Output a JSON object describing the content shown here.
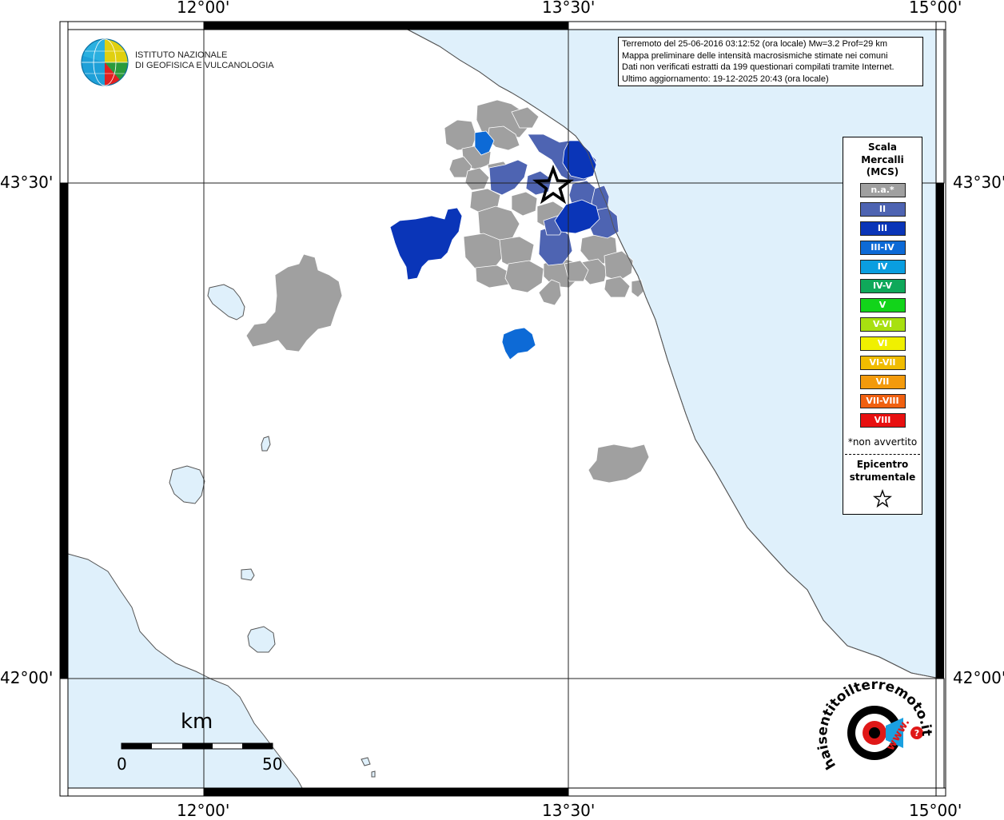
{
  "map": {
    "coords": {
      "top": [
        "12°00'",
        "13°30'",
        "15°00'"
      ],
      "bottom": [
        "12°00'",
        "13°30'",
        "15°00'"
      ],
      "left": [
        "43°30'",
        "42°00'"
      ],
      "right": [
        "43°30'",
        "42°00'"
      ]
    },
    "colors": {
      "sea": "#dff0fb",
      "land": "#ffffff",
      "na": "#a0a0a0",
      "II": "#4e64b2",
      "III": "#0a35b8",
      "III_IV": "#0d6ad6"
    }
  },
  "logo_ingv": {
    "lines": [
      "ISTITUTO NAZIONALE",
      "DI GEOFISICA E VULCANOLOGIA"
    ]
  },
  "info": {
    "lines": [
      "Terremoto del 25-06-2016 03:12:52 (ora locale) Mw=3.2 Prof=29 km",
      "Mappa preliminare delle intensità macrosismiche stimate nei comuni",
      "Dati non verificati estratti da 199 questionari compilati tramite Internet.",
      "Ultimo aggiornamento: 19-12-2025 20:43 (ora locale)"
    ]
  },
  "legend": {
    "title_lines": [
      "Scala",
      "Mercalli",
      "(MCS)"
    ],
    "items": [
      {
        "label": "n.a.*",
        "color": "#a0a0a0"
      },
      {
        "label": "II",
        "color": "#4e64b2"
      },
      {
        "label": "III",
        "color": "#0a35b8"
      },
      {
        "label": "III-IV",
        "color": "#0d6ad6"
      },
      {
        "label": "IV",
        "color": "#0a9ee0"
      },
      {
        "label": "IV-V",
        "color": "#0fa85a"
      },
      {
        "label": "V",
        "color": "#12d41a"
      },
      {
        "label": "V-VI",
        "color": "#a8e010"
      },
      {
        "label": "VI",
        "color": "#f0f000"
      },
      {
        "label": "VI-VII",
        "color": "#f0bc00"
      },
      {
        "label": "VII",
        "color": "#f39a0c"
      },
      {
        "label": "VII-VIII",
        "color": "#f06010"
      },
      {
        "label": "VIII",
        "color": "#e81010"
      }
    ],
    "note": "*non avvertito",
    "epicenter_lines": [
      "Epicentro",
      "strumentale"
    ]
  },
  "scale_bar": {
    "unit": "km",
    "min_label": "0",
    "max_label": "50"
  },
  "logo_haisentito": {
    "text": "haisentitoilterremoto.it",
    "www": "www."
  }
}
